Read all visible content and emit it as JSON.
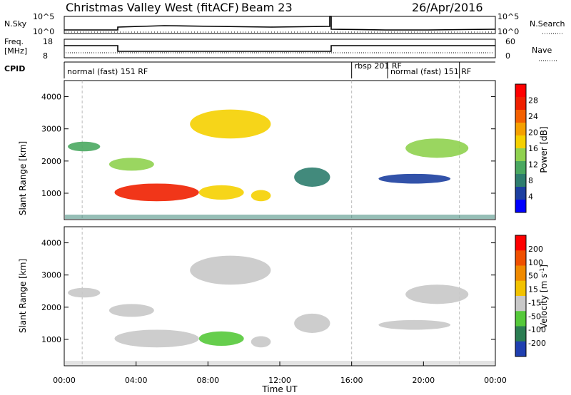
{
  "header": {
    "radar": "Christmas Valley West (fitACF)",
    "beam": "Beam 23",
    "date": "26/Apr/2016"
  },
  "top_panels": {
    "nsky_label": "N.Sky",
    "nsearch_label": "N.Search",
    "nsky_ticks": [
      "10^5",
      "10^0"
    ],
    "nsearch_ticks": [
      "10^5",
      "10^0"
    ],
    "freq_label_1": "Freq.",
    "freq_label_2": "[MHz]",
    "freq_ticks": [
      "18",
      "8"
    ],
    "nave_label": "Nave",
    "nave_ticks": [
      "60",
      "0"
    ],
    "cpid_label": "CPID",
    "cpid_segments": [
      {
        "label": "normal (fast) 151 RF",
        "start_h": 0,
        "end_h": 16
      },
      {
        "label": "rbsp 201 RF",
        "start_h": 16,
        "end_h": 18
      },
      {
        "label": "normal (fast) 151 RF",
        "start_h": 18,
        "end_h": 22
      }
    ]
  },
  "chart_data": [
    {
      "type": "heatmap",
      "panel": "power",
      "ylabel": "Slant Range [km]",
      "ylim": [
        180,
        4500
      ],
      "yticks": [
        1000,
        2000,
        3000,
        4000
      ],
      "xlim": [
        0,
        24
      ],
      "colorbar_label": "Power [dB]",
      "colorbar_ticks": [
        "28",
        "24",
        "20",
        "16",
        "12",
        "8",
        "4"
      ],
      "colors": [
        "#0000ff",
        "#1c3fa0",
        "#2e7d6e",
        "#4aa860",
        "#8fd14f",
        "#f5d000",
        "#f5a000",
        "#f46000",
        "#ef2000",
        "#ff0000"
      ],
      "echo_regions": [
        {
          "t_start": 2.8,
          "t_end": 7.5,
          "r_low": 750,
          "r_high": 1300,
          "level_dB": 26
        },
        {
          "t_start": 7.5,
          "t_end": 10.0,
          "r_low": 800,
          "r_high": 1250,
          "level_dB": 18
        },
        {
          "t_start": 10.4,
          "t_end": 11.5,
          "r_low": 750,
          "r_high": 1100,
          "level_dB": 16
        },
        {
          "t_start": 0.2,
          "t_end": 2.0,
          "r_low": 2300,
          "r_high": 2600,
          "level_dB": 10
        },
        {
          "t_start": 2.5,
          "t_end": 5.0,
          "r_low": 1700,
          "r_high": 2100,
          "level_dB": 14
        },
        {
          "t_start": 7.0,
          "t_end": 11.5,
          "r_low": 2700,
          "r_high": 3600,
          "level_dB": 16
        },
        {
          "t_start": 12.8,
          "t_end": 14.8,
          "r_low": 1200,
          "r_high": 1800,
          "level_dB": 8
        },
        {
          "t_start": 19.0,
          "t_end": 22.5,
          "r_low": 2100,
          "r_high": 2700,
          "level_dB": 14
        },
        {
          "t_start": 17.5,
          "t_end": 21.5,
          "r_low": 1300,
          "r_high": 1600,
          "level_dB": 6
        }
      ]
    },
    {
      "type": "heatmap",
      "panel": "velocity",
      "ylabel": "Slant Range [km]",
      "xlabel": "Time UT",
      "ylim": [
        180,
        4500
      ],
      "yticks": [
        1000,
        2000,
        3000,
        4000
      ],
      "xlim": [
        0,
        24
      ],
      "xticks": [
        "00:00",
        "04:00",
        "08:00",
        "12:00",
        "16:00",
        "20:00",
        "00:00"
      ],
      "colorbar_label": "Velocity [m s^-1]",
      "colorbar_ticks": [
        "200",
        "100",
        "50",
        "15",
        "-15",
        "-50",
        "-100",
        "-200"
      ],
      "colors": [
        "#1f3fb0",
        "#2b7d52",
        "#55c93a",
        "#c8c8c8",
        "#f2c200",
        "#f08a00",
        "#f05000",
        "#ff0000"
      ],
      "echo_regions": [
        {
          "t_start": 2.8,
          "t_end": 7.5,
          "r_low": 750,
          "r_high": 1300,
          "velocity": 0
        },
        {
          "t_start": 7.5,
          "t_end": 10.0,
          "r_low": 800,
          "r_high": 1250,
          "velocity": 20
        },
        {
          "t_start": 10.4,
          "t_end": 11.5,
          "r_low": 750,
          "r_high": 1100,
          "velocity": 0
        },
        {
          "t_start": 0.2,
          "t_end": 2.0,
          "r_low": 2300,
          "r_high": 2600,
          "velocity": 0
        },
        {
          "t_start": 2.5,
          "t_end": 5.0,
          "r_low": 1700,
          "r_high": 2100,
          "velocity": 0
        },
        {
          "t_start": 7.0,
          "t_end": 11.5,
          "r_low": 2700,
          "r_high": 3600,
          "velocity": 0
        },
        {
          "t_start": 12.8,
          "t_end": 14.8,
          "r_low": 1200,
          "r_high": 1800,
          "velocity": 0
        },
        {
          "t_start": 19.0,
          "t_end": 22.5,
          "r_low": 2100,
          "r_high": 2700,
          "velocity": 0
        },
        {
          "t_start": 17.5,
          "t_end": 21.5,
          "r_low": 1300,
          "r_high": 1600,
          "velocity": 0
        }
      ]
    }
  ]
}
